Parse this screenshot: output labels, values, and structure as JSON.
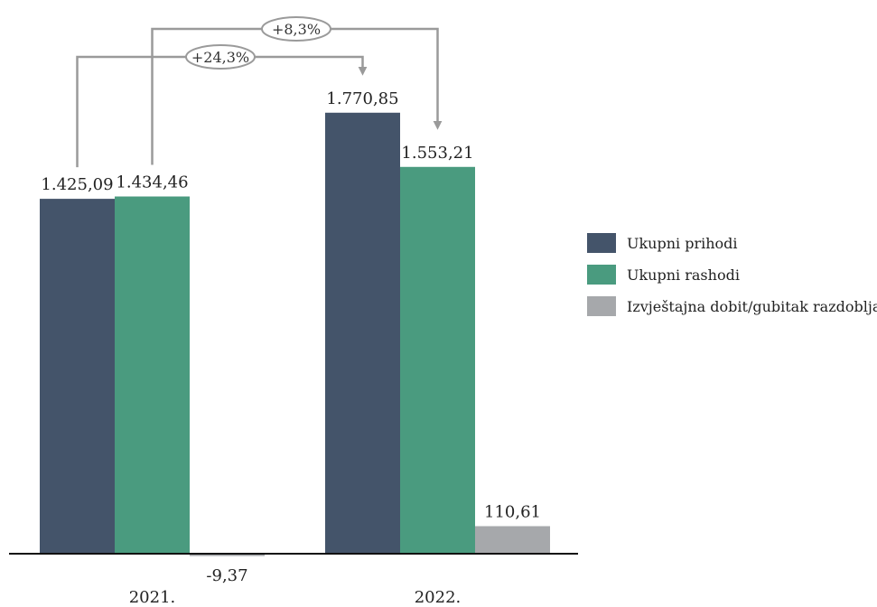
{
  "chart_data": {
    "type": "bar",
    "categories": [
      "2021.",
      "2022."
    ],
    "series": [
      {
        "name": "Ukupni prihodi",
        "values": [
          1425.09,
          1770.85
        ],
        "labels": [
          "1.425,09",
          "1.770,85"
        ],
        "color": "#44546a"
      },
      {
        "name": "Ukupni rashodi",
        "values": [
          1434.46,
          1553.21
        ],
        "labels": [
          "1.434,46",
          "1.553,21"
        ],
        "color": "#4a9b7f"
      },
      {
        "name": "Izvještajna dobit/gubitak razdoblja",
        "values": [
          -9.37,
          110.61
        ],
        "labels": [
          "-9,37",
          "110,61"
        ],
        "color": "#a6a8ab"
      }
    ],
    "ylim": [
      -10,
      1950
    ],
    "annotations": [
      {
        "text": "+8,3%",
        "from_series": 1,
        "to_series": 1
      },
      {
        "text": "+24,3%",
        "from_series": 0,
        "to_series": 0
      }
    ],
    "legend_position": "right",
    "grid": false
  }
}
